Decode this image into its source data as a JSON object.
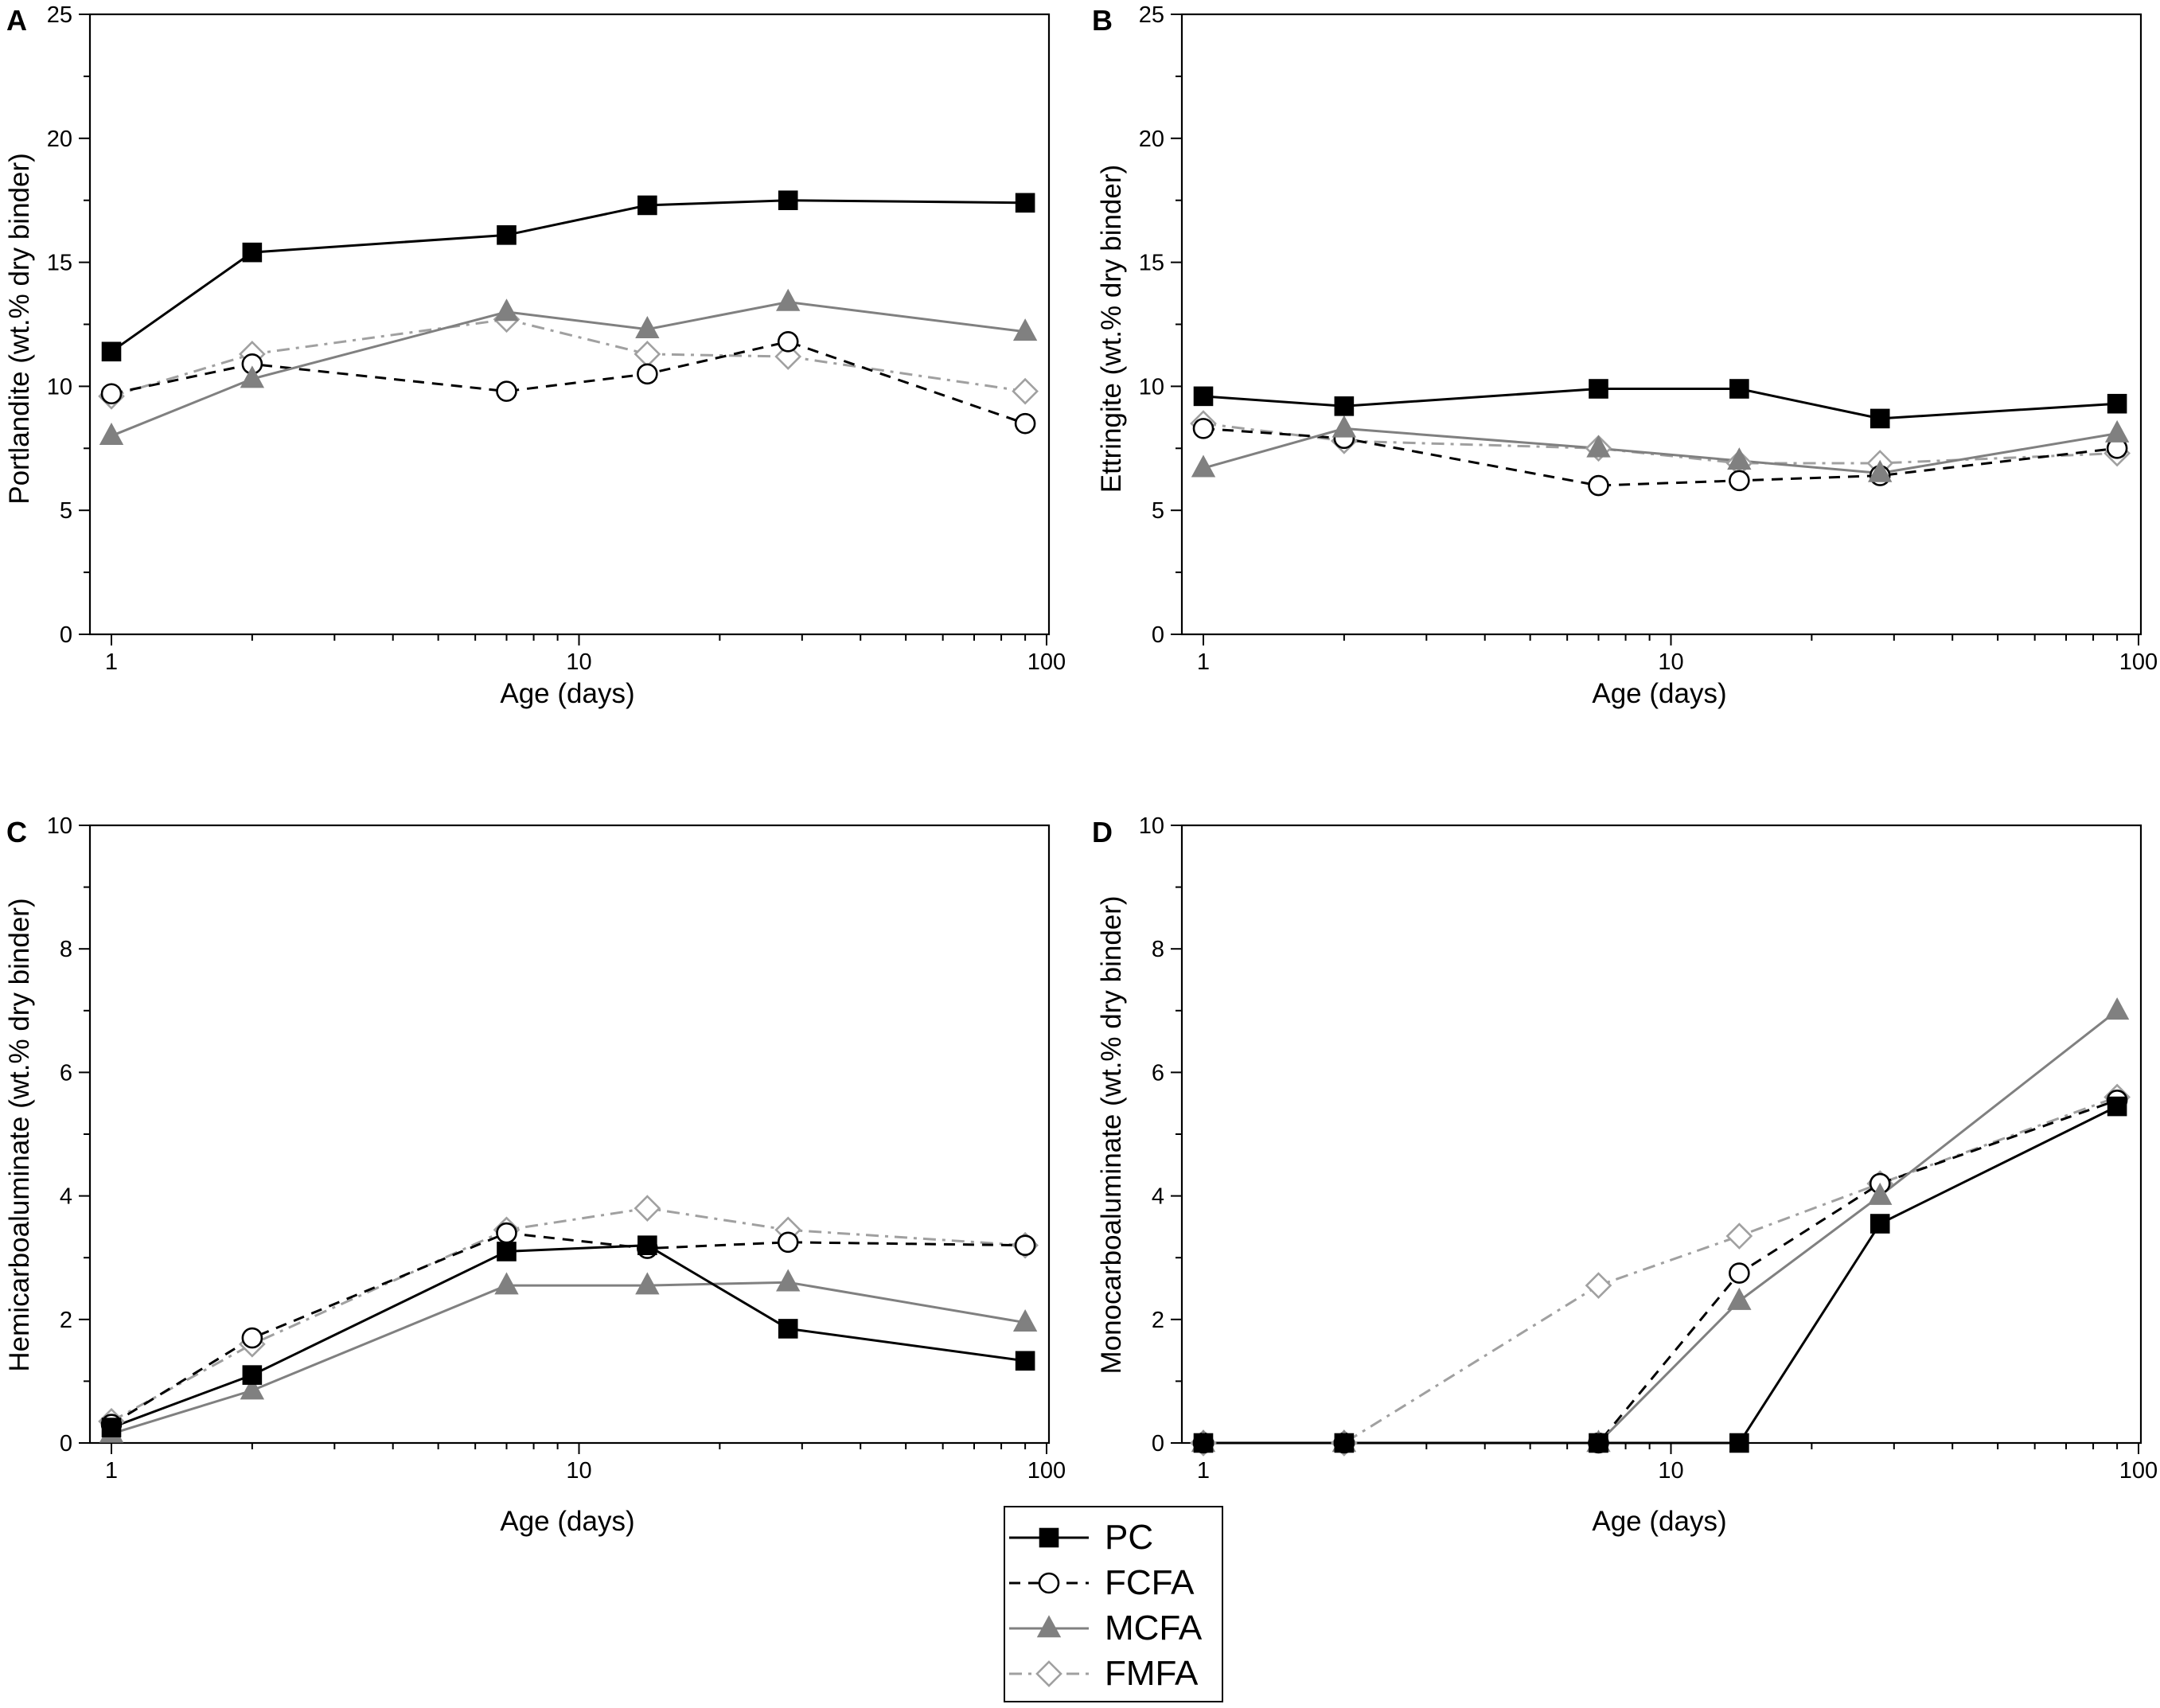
{
  "figure_title": "",
  "styles": {
    "PC": {
      "color": "#000000",
      "dash": "",
      "marker": "square",
      "fill": "#000000"
    },
    "FCFA": {
      "color": "#000000",
      "dash": "14,10",
      "marker": "circle",
      "fill": "#ffffff"
    },
    "MCFA": {
      "color": "#808080",
      "dash": "",
      "marker": "triangle",
      "fill": "#808080"
    },
    "FMFA": {
      "color": "#a0a0a0",
      "dash": "16,8,4,8",
      "marker": "diamond",
      "fill": "#ffffff"
    }
  },
  "legend": {
    "entries": [
      "PC",
      "FCFA",
      "MCFA",
      "FMFA"
    ]
  },
  "chart_data": [
    {
      "panel": "A",
      "type": "line",
      "xscale": "log",
      "xlabel": "Age (days)",
      "ylabel": "Portlandite (wt.% dry binder)",
      "xlim": [
        1,
        100
      ],
      "ylim": [
        0,
        25
      ],
      "xticks": [
        1,
        10,
        100
      ],
      "xtick_labels": [
        "1",
        "10",
        "100"
      ],
      "yticks": [
        0,
        5,
        10,
        15,
        20,
        25
      ],
      "ytick_labels": [
        "0",
        "5",
        "10",
        "15",
        "20",
        "25"
      ],
      "x": [
        1,
        2,
        7,
        14,
        28,
        90
      ],
      "series": [
        {
          "name": "PC",
          "values": [
            11.4,
            15.4,
            16.1,
            17.3,
            17.5,
            17.4
          ]
        },
        {
          "name": "FCFA",
          "values": [
            9.7,
            10.9,
            9.8,
            10.5,
            11.8,
            8.5
          ]
        },
        {
          "name": "MCFA",
          "values": [
            8.0,
            10.3,
            13.0,
            12.3,
            13.4,
            12.2
          ]
        },
        {
          "name": "FMFA",
          "values": [
            9.6,
            11.3,
            12.7,
            11.3,
            11.2,
            9.8
          ]
        }
      ]
    },
    {
      "panel": "B",
      "type": "line",
      "xscale": "log",
      "xlabel": "Age (days)",
      "ylabel": "Ettringite (wt.% dry binder)",
      "xlim": [
        1,
        100
      ],
      "ylim": [
        0,
        25
      ],
      "xticks": [
        1,
        10,
        100
      ],
      "xtick_labels": [
        "1",
        "10",
        "100"
      ],
      "yticks": [
        0,
        5,
        10,
        15,
        20,
        25
      ],
      "ytick_labels": [
        "0",
        "5",
        "10",
        "15",
        "20",
        "25"
      ],
      "x": [
        1,
        2,
        7,
        14,
        28,
        90
      ],
      "series": [
        {
          "name": "PC",
          "values": [
            9.6,
            9.2,
            9.9,
            9.9,
            8.7,
            9.3
          ]
        },
        {
          "name": "FCFA",
          "values": [
            8.3,
            7.9,
            6.0,
            6.2,
            6.4,
            7.5
          ]
        },
        {
          "name": "MCFA",
          "values": [
            6.7,
            8.3,
            7.5,
            7.0,
            6.5,
            8.1
          ]
        },
        {
          "name": "FMFA",
          "values": [
            8.5,
            7.8,
            7.5,
            6.9,
            6.9,
            7.3
          ]
        }
      ]
    },
    {
      "panel": "C",
      "type": "line",
      "xscale": "log",
      "xlabel": "Age (days)",
      "ylabel": "Hemicarboaluminate (wt.% dry binder)",
      "xlim": [
        1,
        100
      ],
      "ylim": [
        0,
        10
      ],
      "xticks": [
        1,
        10,
        100
      ],
      "xtick_labels": [
        "1",
        "10",
        "100"
      ],
      "yticks": [
        0,
        2,
        4,
        6,
        8,
        10
      ],
      "ytick_labels": [
        "0",
        "2",
        "4",
        "6",
        "8",
        "10"
      ],
      "x": [
        1,
        2,
        7,
        14,
        28,
        90
      ],
      "series": [
        {
          "name": "PC",
          "values": [
            0.25,
            1.1,
            3.1,
            3.2,
            1.85,
            1.33
          ]
        },
        {
          "name": "FCFA",
          "values": [
            0.3,
            1.7,
            3.4,
            3.15,
            3.25,
            3.2
          ]
        },
        {
          "name": "MCFA",
          "values": [
            0.15,
            0.85,
            2.55,
            2.55,
            2.6,
            1.95
          ]
        },
        {
          "name": "FMFA",
          "values": [
            0.35,
            1.6,
            3.45,
            3.8,
            3.45,
            3.2
          ]
        }
      ]
    },
    {
      "panel": "D",
      "type": "line",
      "xscale": "log",
      "xlabel": "Age (days)",
      "ylabel": "Monocarboaluminate (wt.% dry binder)",
      "xlim": [
        1,
        100
      ],
      "ylim": [
        0,
        10
      ],
      "xticks": [
        1,
        10,
        100
      ],
      "xtick_labels": [
        "1",
        "10",
        "100"
      ],
      "yticks": [
        0,
        2,
        4,
        6,
        8,
        10
      ],
      "ytick_labels": [
        "0",
        "2",
        "4",
        "6",
        "8",
        "10"
      ],
      "x": [
        1,
        2,
        7,
        14,
        28,
        90
      ],
      "series": [
        {
          "name": "PC",
          "values": [
            0,
            0,
            0,
            0,
            3.55,
            5.45
          ]
        },
        {
          "name": "FCFA",
          "values": [
            0,
            0,
            0,
            2.75,
            4.2,
            5.55
          ]
        },
        {
          "name": "MCFA",
          "values": [
            0,
            0,
            0,
            2.3,
            4.0,
            7.0
          ]
        },
        {
          "name": "FMFA",
          "values": [
            0,
            0,
            2.55,
            3.35,
            4.2,
            5.6
          ]
        }
      ]
    }
  ]
}
